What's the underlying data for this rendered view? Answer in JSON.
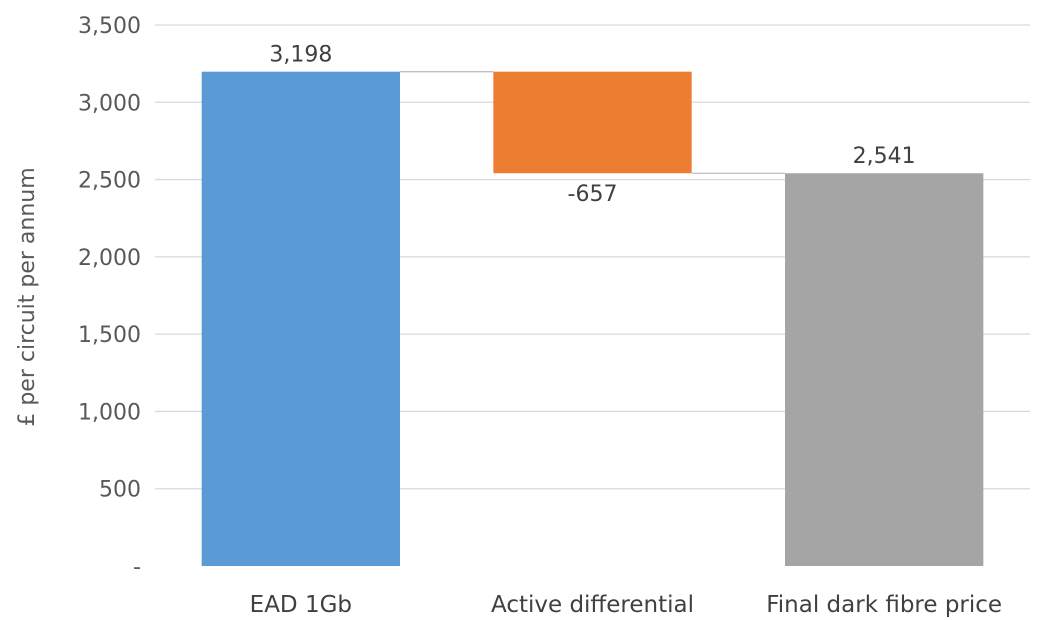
{
  "chart_data": {
    "type": "bar",
    "subtype": "waterfall",
    "ylabel": "£ per circuit per annum",
    "ylim": [
      0,
      3500
    ],
    "yticks": [
      0,
      500,
      1000,
      1500,
      2000,
      2500,
      3000,
      3500
    ],
    "ytick_labels": [
      "-",
      "500",
      "1,000",
      "1,500",
      "2,000",
      "2,500",
      "3,000",
      "3,500"
    ],
    "grid": true,
    "categories": [
      "EAD 1Gb",
      "Active differential",
      "Final dark fibre price"
    ],
    "values": [
      3198,
      -657,
      2541
    ],
    "value_labels": [
      "3,198",
      "-657",
      "2,541"
    ],
    "bar_kinds": [
      "total",
      "delta",
      "total"
    ],
    "colors": [
      "#5b9bd5",
      "#ed7d31",
      "#a5a5a5"
    ],
    "connectors": true
  }
}
